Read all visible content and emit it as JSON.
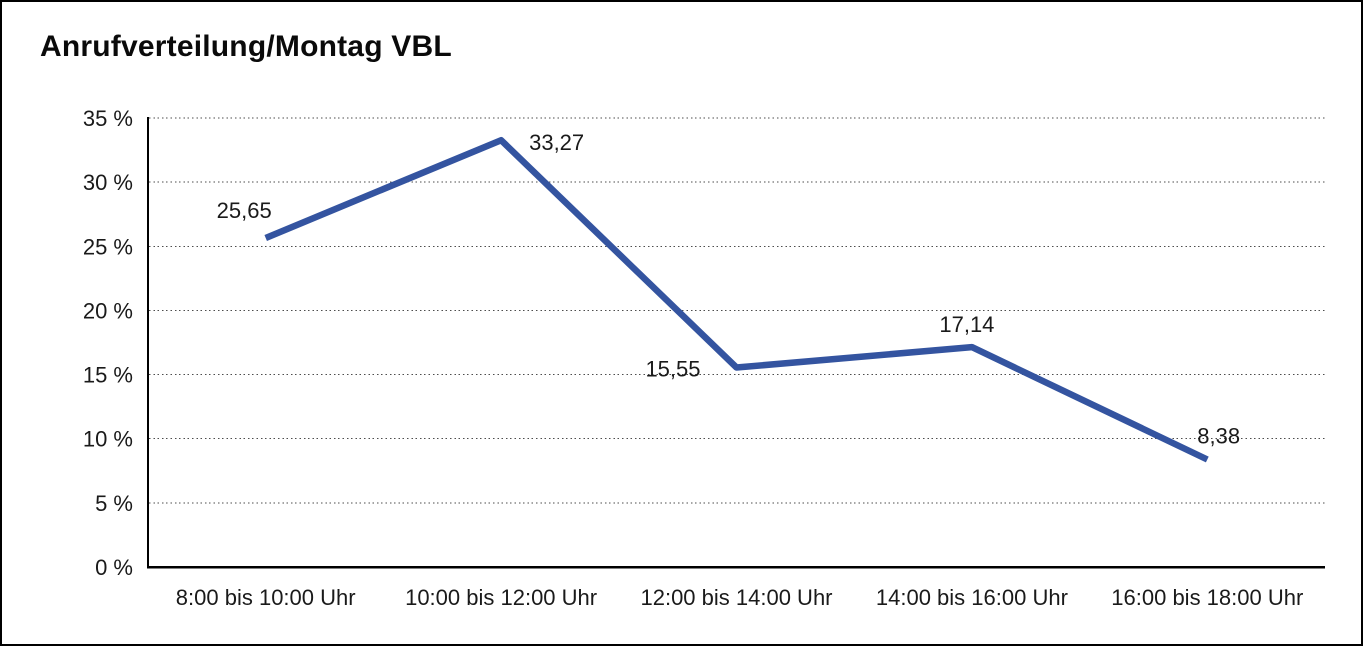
{
  "window": {
    "background_color": "#ffffff",
    "border_color": "#000000"
  },
  "header": {
    "title": "Anrufverteilung/Montag VBL"
  },
  "chart_data": {
    "type": "line",
    "title": "Anrufverteilung/Montag VBL",
    "categories": [
      "8:00 bis 10:00 Uhr",
      "10:00 bis 12:00 Uhr",
      "12:00 bis 14:00 Uhr",
      "14:00 bis 16:00 Uhr",
      "16:00 bis 18:00 Uhr"
    ],
    "values": [
      25.65,
      33.27,
      15.55,
      17.14,
      8.38
    ],
    "value_labels": [
      "25,65",
      "33,27",
      "15,55",
      "17,14",
      "8,38"
    ],
    "xlabel": "",
    "ylabel": "",
    "ylim": [
      0,
      35
    ],
    "ytick_step": 5,
    "ytick_labels": [
      "0 %",
      "5 %",
      "10 %",
      "15 %",
      "20 %",
      "25 %",
      "30 %",
      "35 %"
    ],
    "grid": "dotted-horizontal",
    "legend": "none",
    "line_color": "#3454A0",
    "axis_color": "#000000",
    "grid_color": "#4d4d4d",
    "text_color": "#1a1a1a"
  }
}
